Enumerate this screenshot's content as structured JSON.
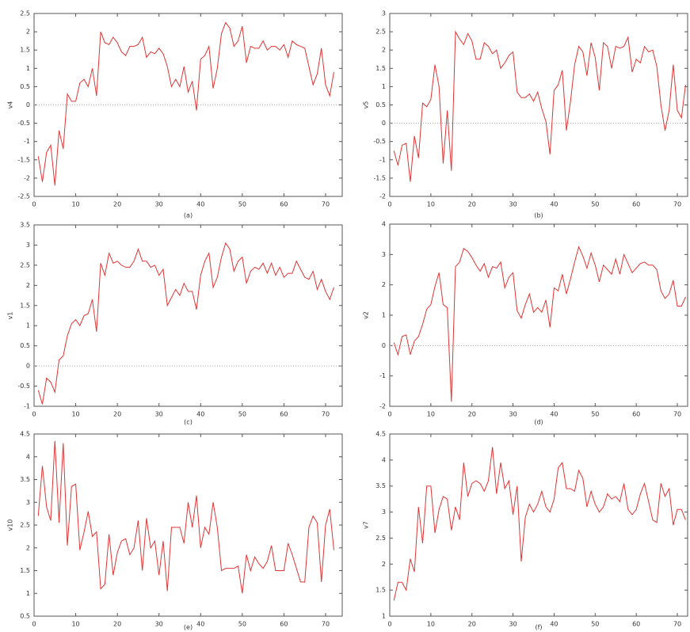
{
  "chart_data": [
    {
      "type": "line",
      "caption": "(a)",
      "y_label": "v4",
      "zero_line": true,
      "xlim": [
        0,
        74
      ],
      "ylim": [
        -2.5,
        2.5
      ],
      "xticks": [
        0,
        10,
        20,
        30,
        40,
        50,
        60,
        70
      ],
      "yticks": [
        -2.5,
        -2,
        -1.5,
        -1,
        -0.5,
        0,
        0.5,
        1,
        1.5,
        2,
        2.5
      ],
      "x": [
        1,
        2,
        3,
        4,
        5,
        6,
        7,
        8,
        9,
        10,
        11,
        12,
        13,
        14,
        15,
        16,
        17,
        18,
        19,
        20,
        21,
        22,
        23,
        24,
        25,
        26,
        27,
        28,
        29,
        30,
        31,
        32,
        33,
        34,
        35,
        36,
        37,
        38,
        39,
        40,
        41,
        42,
        43,
        44,
        45,
        46,
        47,
        48,
        49,
        50,
        51,
        52,
        53,
        54,
        55,
        56,
        57,
        58,
        59,
        60,
        61,
        62,
        63,
        64,
        65,
        66,
        67,
        68,
        69,
        70,
        71,
        72
      ],
      "series": [
        {
          "color": "#e03434",
          "values": [
            -1.4,
            -2.1,
            -1.3,
            -1.1,
            -2.2,
            -0.7,
            -1.2,
            0.3,
            0.1,
            0.1,
            0.6,
            0.7,
            0.5,
            1.0,
            0.25,
            2.0,
            1.7,
            1.65,
            1.85,
            1.7,
            1.45,
            1.35,
            1.6,
            1.6,
            1.65,
            1.85,
            1.3,
            1.45,
            1.4,
            1.55,
            1.4,
            1.05,
            0.5,
            0.7,
            0.5,
            1.05,
            0.35,
            0.65,
            -0.15,
            1.25,
            1.35,
            1.6,
            0.45,
            1.0,
            1.95,
            2.25,
            2.1,
            1.6,
            1.75,
            2.15,
            1.15,
            1.6,
            1.55,
            1.55,
            1.75,
            1.5,
            1.6,
            1.6,
            1.5,
            1.65,
            1.3,
            1.75,
            1.65,
            1.6,
            1.55,
            1.05,
            0.55,
            0.85,
            1.55,
            0.55,
            0.25,
            0.9
          ]
        }
      ]
    },
    {
      "type": "line",
      "caption": "(b)",
      "y_label": "v5",
      "zero_line": true,
      "xlim": [
        0,
        72.5
      ],
      "ylim": [
        -2,
        3
      ],
      "xticks": [
        0,
        10,
        20,
        30,
        40,
        50,
        60,
        70
      ],
      "yticks": [
        -2,
        -1.5,
        -1,
        -0.5,
        0,
        0.5,
        1,
        1.5,
        2,
        2.5,
        3
      ],
      "x": [
        1,
        2,
        3,
        4,
        5,
        6,
        7,
        8,
        9,
        10,
        11,
        12,
        13,
        14,
        15,
        16,
        17,
        18,
        19,
        20,
        21,
        22,
        23,
        24,
        25,
        26,
        27,
        28,
        29,
        30,
        31,
        32,
        33,
        34,
        35,
        36,
        37,
        38,
        39,
        40,
        41,
        42,
        43,
        44,
        45,
        46,
        47,
        48,
        49,
        50,
        51,
        52,
        53,
        54,
        55,
        56,
        57,
        58,
        59,
        60,
        61,
        62,
        63,
        64,
        65,
        66,
        67,
        68,
        69,
        70,
        71,
        72
      ],
      "series": [
        {
          "color": "#e03434",
          "values": [
            -0.75,
            -1.15,
            -0.6,
            -0.55,
            -1.6,
            -0.35,
            -0.95,
            0.55,
            0.45,
            0.65,
            1.6,
            1.0,
            -1.1,
            0.35,
            -1.3,
            2.5,
            2.3,
            2.15,
            2.45,
            2.25,
            1.75,
            1.75,
            2.2,
            2.1,
            1.9,
            2.0,
            1.5,
            1.65,
            1.85,
            1.95,
            0.85,
            0.7,
            0.7,
            0.8,
            0.6,
            0.85,
            0.4,
            0.05,
            -0.85,
            0.9,
            1.05,
            1.45,
            -0.2,
            0.6,
            1.6,
            2.1,
            1.95,
            1.3,
            2.2,
            1.8,
            0.9,
            2.2,
            2.1,
            1.5,
            2.1,
            2.05,
            2.1,
            2.35,
            1.4,
            1.75,
            1.65,
            2.1,
            1.95,
            2.0,
            1.55,
            0.5,
            -0.2,
            0.35,
            1.6,
            0.35,
            0.15,
            1.05
          ]
        }
      ]
    },
    {
      "type": "line",
      "caption": "(c)",
      "y_label": "v1",
      "zero_line": true,
      "xlim": [
        0,
        74
      ],
      "ylim": [
        -1,
        3.5
      ],
      "xticks": [
        0,
        10,
        20,
        30,
        40,
        50,
        60,
        70
      ],
      "yticks": [
        -1,
        -0.5,
        0,
        0.5,
        1,
        1.5,
        2,
        2.5,
        3,
        3.5
      ],
      "x": [
        1,
        2,
        3,
        4,
        5,
        6,
        7,
        8,
        9,
        10,
        11,
        12,
        13,
        14,
        15,
        16,
        17,
        18,
        19,
        20,
        21,
        22,
        23,
        24,
        25,
        26,
        27,
        28,
        29,
        30,
        31,
        32,
        33,
        34,
        35,
        36,
        37,
        38,
        39,
        40,
        41,
        42,
        43,
        44,
        45,
        46,
        47,
        48,
        49,
        50,
        51,
        52,
        53,
        54,
        55,
        56,
        57,
        58,
        59,
        60,
        61,
        62,
        63,
        64,
        65,
        66,
        67,
        68,
        69,
        70,
        71,
        72
      ],
      "series": [
        {
          "color": "#e03434",
          "values": [
            -0.6,
            -0.95,
            -0.3,
            -0.4,
            -0.65,
            0.15,
            0.25,
            0.75,
            1.05,
            1.15,
            1.0,
            1.25,
            1.3,
            1.65,
            0.85,
            2.55,
            2.25,
            2.8,
            2.55,
            2.6,
            2.5,
            2.45,
            2.45,
            2.6,
            2.9,
            2.6,
            2.6,
            2.45,
            2.5,
            2.25,
            2.4,
            1.5,
            1.7,
            1.9,
            1.75,
            2.05,
            1.85,
            1.85,
            1.4,
            2.25,
            2.6,
            2.8,
            1.95,
            2.2,
            2.7,
            3.05,
            2.9,
            2.35,
            2.6,
            2.7,
            2.05,
            2.35,
            2.45,
            2.4,
            2.55,
            2.3,
            2.55,
            2.25,
            2.45,
            2.2,
            2.3,
            2.3,
            2.6,
            2.4,
            2.2,
            2.15,
            2.35,
            1.9,
            2.15,
            1.85,
            1.65,
            1.95
          ]
        }
      ]
    },
    {
      "type": "line",
      "caption": "(d)",
      "y_label": "v2",
      "zero_line": true,
      "xlim": [
        0,
        72.5
      ],
      "ylim": [
        -2,
        4
      ],
      "xticks": [
        0,
        10,
        20,
        30,
        40,
        50,
        60,
        70
      ],
      "yticks": [
        -2,
        -1,
        0,
        1,
        2,
        3,
        4
      ],
      "x": [
        1,
        2,
        3,
        4,
        5,
        6,
        7,
        8,
        9,
        10,
        11,
        12,
        13,
        14,
        15,
        16,
        17,
        18,
        19,
        20,
        21,
        22,
        23,
        24,
        25,
        26,
        27,
        28,
        29,
        30,
        31,
        32,
        33,
        34,
        35,
        36,
        37,
        38,
        39,
        40,
        41,
        42,
        43,
        44,
        45,
        46,
        47,
        48,
        49,
        50,
        51,
        52,
        53,
        54,
        55,
        56,
        57,
        58,
        59,
        60,
        61,
        62,
        63,
        64,
        65,
        66,
        67,
        68,
        69,
        70,
        71,
        72
      ],
      "series": [
        {
          "color": "#e03434",
          "values": [
            0.1,
            -0.3,
            0.3,
            0.35,
            -0.3,
            0.15,
            0.3,
            0.7,
            1.2,
            1.35,
            1.95,
            2.4,
            1.35,
            1.25,
            -1.85,
            2.6,
            2.75,
            3.2,
            3.1,
            2.9,
            2.65,
            2.45,
            2.7,
            2.25,
            2.6,
            2.55,
            2.75,
            1.9,
            2.25,
            2.4,
            1.15,
            0.9,
            1.35,
            1.7,
            1.1,
            1.25,
            1.1,
            1.5,
            0.6,
            1.9,
            1.8,
            2.35,
            1.7,
            2.2,
            2.75,
            3.25,
            2.95,
            2.55,
            3.05,
            2.65,
            2.1,
            2.65,
            2.5,
            2.35,
            2.85,
            2.35,
            3.0,
            2.7,
            2.4,
            2.55,
            2.7,
            2.75,
            2.65,
            2.65,
            2.5,
            1.8,
            1.55,
            1.7,
            2.15,
            1.3,
            1.3,
            1.6
          ]
        }
      ]
    },
    {
      "type": "line",
      "caption": "(e)",
      "y_label": "v10",
      "zero_line": false,
      "xlim": [
        0,
        74
      ],
      "ylim": [
        0.5,
        4.5
      ],
      "xticks": [
        0,
        10,
        20,
        30,
        40,
        50,
        60,
        70
      ],
      "yticks": [
        0.5,
        1,
        1.5,
        2,
        2.5,
        3,
        3.5,
        4,
        4.5
      ],
      "x": [
        1,
        2,
        3,
        4,
        5,
        6,
        7,
        8,
        9,
        10,
        11,
        12,
        13,
        14,
        15,
        16,
        17,
        18,
        19,
        20,
        21,
        22,
        23,
        24,
        25,
        26,
        27,
        28,
        29,
        30,
        31,
        32,
        33,
        34,
        35,
        36,
        37,
        38,
        39,
        40,
        41,
        42,
        43,
        44,
        45,
        46,
        47,
        48,
        49,
        50,
        51,
        52,
        53,
        54,
        55,
        56,
        57,
        58,
        59,
        60,
        61,
        62,
        63,
        64,
        65,
        66,
        67,
        68,
        69,
        70,
        71,
        72
      ],
      "series": [
        {
          "color": "#e03434",
          "values": [
            2.7,
            3.8,
            2.9,
            2.6,
            4.35,
            2.55,
            4.3,
            2.05,
            3.35,
            3.4,
            1.95,
            2.35,
            2.8,
            2.25,
            2.35,
            1.1,
            1.2,
            2.3,
            1.4,
            1.9,
            2.15,
            2.2,
            1.85,
            2.0,
            2.6,
            1.5,
            2.65,
            2.0,
            2.15,
            1.4,
            2.15,
            1.05,
            2.45,
            2.45,
            2.45,
            2.1,
            3.0,
            2.45,
            3.15,
            2.0,
            2.45,
            2.3,
            3.0,
            2.45,
            1.5,
            1.55,
            1.55,
            1.55,
            1.6,
            1.0,
            1.85,
            1.5,
            1.8,
            1.65,
            1.55,
            1.7,
            2.05,
            1.5,
            1.5,
            1.5,
            2.1,
            1.85,
            1.55,
            1.25,
            1.25,
            2.45,
            2.7,
            2.55,
            1.25,
            2.5,
            2.85,
            1.95
          ]
        }
      ]
    },
    {
      "type": "line",
      "caption": "(f)",
      "y_label": "v7",
      "zero_line": false,
      "xlim": [
        0,
        72.5
      ],
      "ylim": [
        1,
        4.5
      ],
      "xticks": [
        0,
        10,
        20,
        30,
        40,
        50,
        60,
        70
      ],
      "yticks": [
        1,
        1.5,
        2,
        2.5,
        3,
        3.5,
        4,
        4.5
      ],
      "x": [
        1,
        2,
        3,
        4,
        5,
        6,
        7,
        8,
        9,
        10,
        11,
        12,
        13,
        14,
        15,
        16,
        17,
        18,
        19,
        20,
        21,
        22,
        23,
        24,
        25,
        26,
        27,
        28,
        29,
        30,
        31,
        32,
        33,
        34,
        35,
        36,
        37,
        38,
        39,
        40,
        41,
        42,
        43,
        44,
        45,
        46,
        47,
        48,
        49,
        50,
        51,
        52,
        53,
        54,
        55,
        56,
        57,
        58,
        59,
        60,
        61,
        62,
        63,
        64,
        65,
        66,
        67,
        68,
        69,
        70,
        71,
        72
      ],
      "series": [
        {
          "color": "#e03434",
          "values": [
            1.3,
            1.65,
            1.65,
            1.5,
            2.1,
            1.85,
            3.1,
            2.4,
            3.5,
            3.5,
            2.6,
            3.05,
            3.3,
            3.25,
            2.65,
            3.1,
            2.85,
            3.95,
            3.3,
            3.55,
            3.6,
            3.55,
            3.4,
            3.6,
            4.25,
            3.35,
            3.95,
            3.45,
            3.6,
            2.95,
            3.5,
            2.05,
            2.9,
            3.15,
            3.0,
            3.15,
            3.4,
            3.1,
            3.0,
            3.25,
            3.85,
            3.95,
            3.45,
            3.45,
            3.4,
            3.8,
            3.65,
            3.1,
            3.4,
            3.15,
            3.0,
            3.1,
            3.35,
            3.25,
            3.3,
            3.2,
            3.55,
            3.05,
            2.95,
            3.05,
            3.35,
            3.55,
            3.2,
            2.85,
            2.8,
            3.55,
            3.3,
            3.45,
            2.75,
            3.05,
            3.05,
            2.85
          ]
        }
      ]
    }
  ]
}
